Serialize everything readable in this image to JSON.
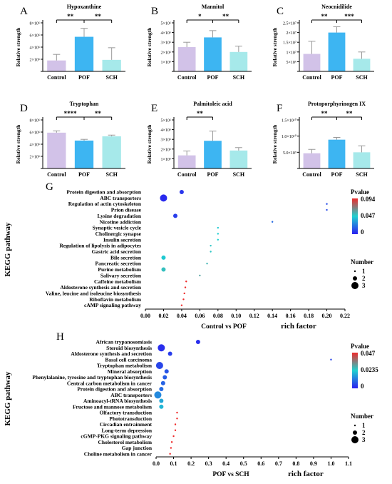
{
  "chart_data": [
    {
      "type": "bar",
      "panel_letter": "A",
      "title": "Hypoxanthine",
      "ylabel": "Relative strength",
      "categories": [
        "Control",
        "POF",
        "SCH"
      ],
      "values": [
        1800000,
        5700000,
        1900000
      ],
      "errors": [
        1000000,
        1400000,
        2000000
      ],
      "colors": [
        "#d2c2e8",
        "#3db5f2",
        "#a6e9ea"
      ],
      "yticks": [
        "2×10⁶",
        "4×10⁶",
        "6×10⁶",
        "8×10⁶"
      ],
      "ylim": [
        0,
        8000000
      ],
      "significance": [
        {
          "from": 0,
          "to": 1,
          "label": "**"
        },
        {
          "from": 1,
          "to": 2,
          "label": "**"
        }
      ]
    },
    {
      "type": "bar",
      "panel_letter": "B",
      "title": "Mannitol",
      "ylabel": "Relative strength",
      "categories": [
        "Control",
        "POF",
        "SCH"
      ],
      "values": [
        2500000,
        3500000,
        2000000
      ],
      "errors": [
        500000,
        700000,
        600000
      ],
      "colors": [
        "#d2c2e8",
        "#3db5f2",
        "#a6e9ea"
      ],
      "yticks": [
        "1×10⁶",
        "2×10⁶",
        "3×10⁶",
        "4×10⁶",
        "5×10⁶"
      ],
      "ylim": [
        0,
        5000000
      ],
      "significance": [
        {
          "from": 0,
          "to": 1,
          "label": "*"
        },
        {
          "from": 1,
          "to": 2,
          "label": "**"
        }
      ]
    },
    {
      "type": "bar",
      "panel_letter": "C",
      "title": "Neocnidilide",
      "ylabel": "Relative strength",
      "categories": [
        "Control",
        "POF",
        "SCH"
      ],
      "values": [
        9000000,
        20000000,
        6500000
      ],
      "errors": [
        6500000,
        3000000,
        3500000
      ],
      "colors": [
        "#d2c2e8",
        "#3db5f2",
        "#a6e9ea"
      ],
      "yticks": [
        "5×10⁶",
        "1×10⁷",
        "1.5×10⁷",
        "2×10⁷",
        "2.5×10⁷"
      ],
      "ylim": [
        0,
        25000000
      ],
      "significance": [
        {
          "from": 0,
          "to": 1,
          "label": "**"
        },
        {
          "from": 1,
          "to": 2,
          "label": "***"
        }
      ]
    },
    {
      "type": "bar",
      "panel_letter": "D",
      "title": "Tryptophan",
      "ylabel": "Relative strength",
      "categories": [
        "Control",
        "POF",
        "SCH"
      ],
      "values": [
        5900000,
        4600000,
        5300000
      ],
      "errors": [
        300000,
        200000,
        200000
      ],
      "colors": [
        "#d2c2e8",
        "#3db5f2",
        "#a6e9ea"
      ],
      "yticks": [
        "2×10⁶",
        "4×10⁶",
        "6×10⁶",
        "8×10⁶"
      ],
      "ylim": [
        0,
        8000000
      ],
      "significance": [
        {
          "from": 0,
          "to": 1,
          "label": "****"
        },
        {
          "from": 1,
          "to": 2,
          "label": "**"
        }
      ]
    },
    {
      "type": "bar",
      "panel_letter": "E",
      "title": "Palmitoleic acid",
      "ylabel": "Relative strength",
      "categories": [
        "Control",
        "POF",
        "SCH"
      ],
      "values": [
        1350000,
        2850000,
        1850000
      ],
      "errors": [
        450000,
        1000000,
        300000
      ],
      "colors": [
        "#d2c2e8",
        "#3db5f2",
        "#a6e9ea"
      ],
      "yticks": [
        "1×10⁶",
        "2×10⁶",
        "3×10⁶",
        "4×10⁶",
        "5×10⁶"
      ],
      "ylim": [
        0,
        5000000
      ],
      "significance": [
        {
          "from": 0,
          "to": 1,
          "label": "**"
        }
      ]
    },
    {
      "type": "bar",
      "panel_letter": "F",
      "title": "Protoporphyrinogen IX",
      "ylabel": "Relative strength",
      "categories": [
        "Control",
        "POF",
        "SCH"
      ],
      "values": [
        4700000000,
        8900000000,
        5000000000
      ],
      "errors": [
        1200000000,
        700000000,
        2000000000
      ],
      "colors": [
        "#d2c2e8",
        "#3db5f2",
        "#a6e9ea"
      ],
      "yticks": [
        "5.0×10⁹",
        "1.0×10¹⁰",
        "1.5×10¹⁰"
      ],
      "ylim": [
        0,
        15000000000
      ],
      "significance": [
        {
          "from": 0,
          "to": 1,
          "label": "**"
        },
        {
          "from": 1,
          "to": 2,
          "label": "**"
        }
      ]
    },
    {
      "type": "scatter",
      "panel_letter": "G",
      "xlabel": "Control vs POF",
      "xlabel2": "rich factor",
      "ylabel": "KEGG pathway",
      "xlim": [
        0,
        0.22
      ],
      "xticks": [
        "0.00",
        "0.02",
        "0.04",
        "0.06",
        "0.08",
        "0.10",
        "0.12",
        "0.14",
        "0.16",
        "0.18",
        "0.20",
        "0.22"
      ],
      "pathways": [
        {
          "name": "Protein digestion and absorption",
          "x": 0.04,
          "number": 2,
          "pvalue": 0.006
        },
        {
          "name": "ABC transporters",
          "x": 0.02,
          "number": 3,
          "pvalue": 0.003
        },
        {
          "name": "Regulation of actin cytoskeleton",
          "x": 0.2,
          "number": 1,
          "pvalue": 0.012
        },
        {
          "name": "Prion disease",
          "x": 0.2,
          "number": 1,
          "pvalue": 0.012
        },
        {
          "name": "Lysine degradation",
          "x": 0.033,
          "number": 2,
          "pvalue": 0.008
        },
        {
          "name": "Nicotine addiction",
          "x": 0.14,
          "number": 1,
          "pvalue": 0.02
        },
        {
          "name": "Synaptic vesicle cycle",
          "x": 0.08,
          "number": 1,
          "pvalue": 0.045
        },
        {
          "name": "Cholinergic synapse",
          "x": 0.08,
          "number": 1,
          "pvalue": 0.046
        },
        {
          "name": "Insulin secretion",
          "x": 0.08,
          "number": 1,
          "pvalue": 0.047
        },
        {
          "name": "Regulation of lipolysis in adipocytes",
          "x": 0.072,
          "number": 1,
          "pvalue": 0.05
        },
        {
          "name": "Gastric acid secretion",
          "x": 0.072,
          "number": 1,
          "pvalue": 0.05
        },
        {
          "name": "Bile secretion",
          "x": 0.02,
          "number": 2,
          "pvalue": 0.045
        },
        {
          "name": "Pancreatic secretion",
          "x": 0.068,
          "number": 1,
          "pvalue": 0.055
        },
        {
          "name": "Purine metabolism",
          "x": 0.02,
          "number": 2,
          "pvalue": 0.052
        },
        {
          "name": "Salivary secretion",
          "x": 0.06,
          "number": 1,
          "pvalue": 0.06
        },
        {
          "name": "Caffeine metabolism",
          "x": 0.045,
          "number": 1,
          "pvalue": 0.094
        },
        {
          "name": "Aldosterone synthesis and secretion",
          "x": 0.044,
          "number": 1,
          "pvalue": 0.094
        },
        {
          "name": "Valine, leucine and isoleucine biosynthesis",
          "x": 0.043,
          "number": 1,
          "pvalue": 0.094
        },
        {
          "name": "Riboflavin metabolism",
          "x": 0.042,
          "number": 1,
          "pvalue": 0.094
        },
        {
          "name": "cAMP signaling pathway",
          "x": 0.04,
          "number": 1,
          "pvalue": 0.094
        }
      ],
      "legend_pvalue": {
        "title": "Pvalue",
        "labels": [
          "0.094",
          "0.047",
          "0"
        ]
      },
      "legend_number": {
        "title": "Number",
        "labels": [
          "1",
          "2",
          "3"
        ]
      }
    },
    {
      "type": "scatter",
      "panel_letter": "H",
      "xlabel": "POF vs SCH",
      "xlabel2": "rich factor",
      "ylabel": "KEGG pathway",
      "xlim": [
        0,
        1.1
      ],
      "xticks": [
        "0.0",
        "0.1",
        "0.2",
        "0.3",
        "0.4",
        "0.5",
        "0.6",
        "0.7",
        "0.8",
        "0.9",
        "1.0",
        "1.1"
      ],
      "pathways": [
        {
          "name": "African trypanosomiasis",
          "x": 0.24,
          "number": 2,
          "pvalue": 0.002
        },
        {
          "name": "Steroid biosynthesis",
          "x": 0.03,
          "number": 3,
          "pvalue": 0.002
        },
        {
          "name": "Aldosterone synthesis and secretion",
          "x": 0.08,
          "number": 2,
          "pvalue": 0.004
        },
        {
          "name": "Basal cell carcinoma",
          "x": 1.0,
          "number": 1,
          "pvalue": 0.005
        },
        {
          "name": "Tryptophan metabolism",
          "x": 0.02,
          "number": 3,
          "pvalue": 0.005
        },
        {
          "name": "Mineral absorption",
          "x": 0.06,
          "number": 2,
          "pvalue": 0.007
        },
        {
          "name": "Phenylalanine, tyrosine and tryptophan biosynthesis",
          "x": 0.05,
          "number": 2,
          "pvalue": 0.008
        },
        {
          "name": "Central carbon metabolism in cancer",
          "x": 0.04,
          "number": 2,
          "pvalue": 0.009
        },
        {
          "name": "Protein digestion and absorption",
          "x": 0.03,
          "number": 2,
          "pvalue": 0.01
        },
        {
          "name": "ABC transporters",
          "x": 0.01,
          "number": 3,
          "pvalue": 0.014
        },
        {
          "name": "Aminoacyl-tRNA biosynthesis",
          "x": 0.03,
          "number": 2,
          "pvalue": 0.018
        },
        {
          "name": "Fructose and mannose metabolism",
          "x": 0.03,
          "number": 2,
          "pvalue": 0.02
        },
        {
          "name": "Olfactory transduction",
          "x": 0.12,
          "number": 1,
          "pvalue": 0.047
        },
        {
          "name": "Phototransduction",
          "x": 0.12,
          "number": 1,
          "pvalue": 0.047
        },
        {
          "name": "Circadian entrainment",
          "x": 0.11,
          "number": 1,
          "pvalue": 0.047
        },
        {
          "name": "Long-term depression",
          "x": 0.11,
          "number": 1,
          "pvalue": 0.047
        },
        {
          "name": "cGMP-PKG signaling pathway",
          "x": 0.1,
          "number": 1,
          "pvalue": 0.047
        },
        {
          "name": "Cholesterol metabolism",
          "x": 0.09,
          "number": 1,
          "pvalue": 0.047
        },
        {
          "name": "Gap junction",
          "x": 0.085,
          "number": 1,
          "pvalue": 0.047
        },
        {
          "name": "Choline metabolism in cancer",
          "x": 0.08,
          "number": 1,
          "pvalue": 0.047
        }
      ],
      "legend_pvalue": {
        "title": "Pvalue",
        "labels": [
          "0.047",
          "0.0235",
          "0"
        ]
      },
      "legend_number": {
        "title": "Number",
        "labels": [
          "1",
          "2",
          "3"
        ]
      }
    }
  ]
}
